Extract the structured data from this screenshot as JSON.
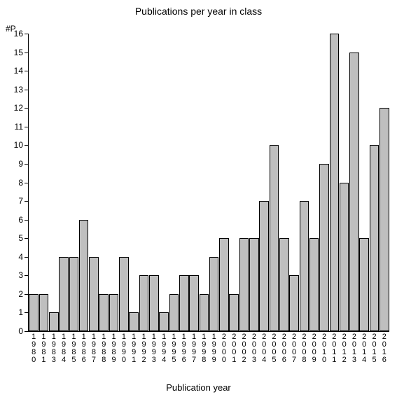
{
  "chart": {
    "type": "bar",
    "title": "Publications per year in class",
    "title_fontsize": 14,
    "y_axis_short_label": "#P",
    "x_axis_label": "Publication year",
    "label_fontsize": 13,
    "background_color": "#ffffff",
    "bar_fill": "#bfbfbf",
    "bar_border": "#000000",
    "axis_color": "#000000",
    "tick_fontsize": 12,
    "ylim": [
      0,
      16
    ],
    "ytick_step": 1,
    "bar_width_ratio": 0.95,
    "years": [
      "1980",
      "1981",
      "1983",
      "1984",
      "1985",
      "1986",
      "1987",
      "1988",
      "1989",
      "1990",
      "1991",
      "1992",
      "1993",
      "1994",
      "1995",
      "1996",
      "1997",
      "1998",
      "1999",
      "2000",
      "2001",
      "2002",
      "2003",
      "2004",
      "2005",
      "2006",
      "2007",
      "2008",
      "2009",
      "2010",
      "2011",
      "2012",
      "2013",
      "2014",
      "2015",
      "2016"
    ],
    "values": [
      2,
      2,
      1,
      4,
      4,
      6,
      4,
      2,
      2,
      4,
      1,
      3,
      3,
      1,
      2,
      3,
      3,
      2,
      4,
      5,
      2,
      5,
      5,
      7,
      10,
      5,
      3,
      7,
      5,
      9,
      16,
      8,
      15,
      5,
      10,
      12
    ]
  }
}
